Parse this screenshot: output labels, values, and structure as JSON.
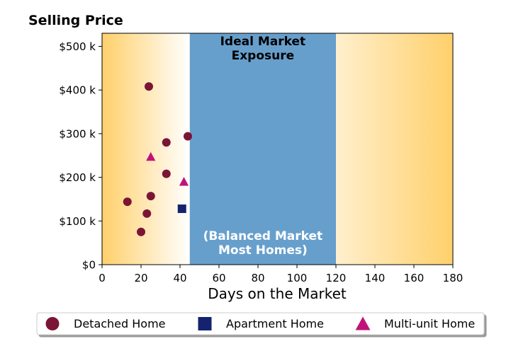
{
  "chart_data": {
    "type": "scatter",
    "title": "Selling Price",
    "xlabel": "Days on the Market",
    "ylabel": "",
    "xlim": [
      0,
      180
    ],
    "ylim": [
      0,
      530
    ],
    "x_ticks": [
      0,
      20,
      40,
      60,
      80,
      100,
      120,
      140,
      160,
      180
    ],
    "y_ticks": [
      0,
      100,
      200,
      300,
      400,
      500
    ],
    "y_tick_labels": [
      "$0",
      "$100 k",
      "$200 k",
      "$300 k",
      "$400 k",
      "$500 k"
    ],
    "grid": false,
    "legend_position": "bottom",
    "regions": [
      {
        "x_start": 45,
        "x_end": 120,
        "color": "#679FCC",
        "label_top": "Ideal Market\nExposure",
        "label_bottom": "(Balanced Market\nMost Homes)"
      }
    ],
    "background_gradient": {
      "edge_color": "#FFD06B",
      "center_color": "#FFFFFF"
    },
    "series": [
      {
        "name": "Detached Home",
        "marker": "circle",
        "color": "#7B1535",
        "points": [
          {
            "x": 24,
            "y": 408
          },
          {
            "x": 44,
            "y": 294
          },
          {
            "x": 33,
            "y": 280
          },
          {
            "x": 33,
            "y": 208
          },
          {
            "x": 25,
            "y": 157
          },
          {
            "x": 13,
            "y": 144
          },
          {
            "x": 23,
            "y": 117
          },
          {
            "x": 20,
            "y": 75
          }
        ]
      },
      {
        "name": "Apartment Home",
        "marker": "square",
        "color": "#15236E",
        "points": [
          {
            "x": 41,
            "y": 128
          }
        ]
      },
      {
        "name": "Multi-unit Home",
        "marker": "triangle",
        "color": "#C2127A",
        "points": [
          {
            "x": 25,
            "y": 247
          },
          {
            "x": 42,
            "y": 190
          }
        ]
      }
    ]
  }
}
